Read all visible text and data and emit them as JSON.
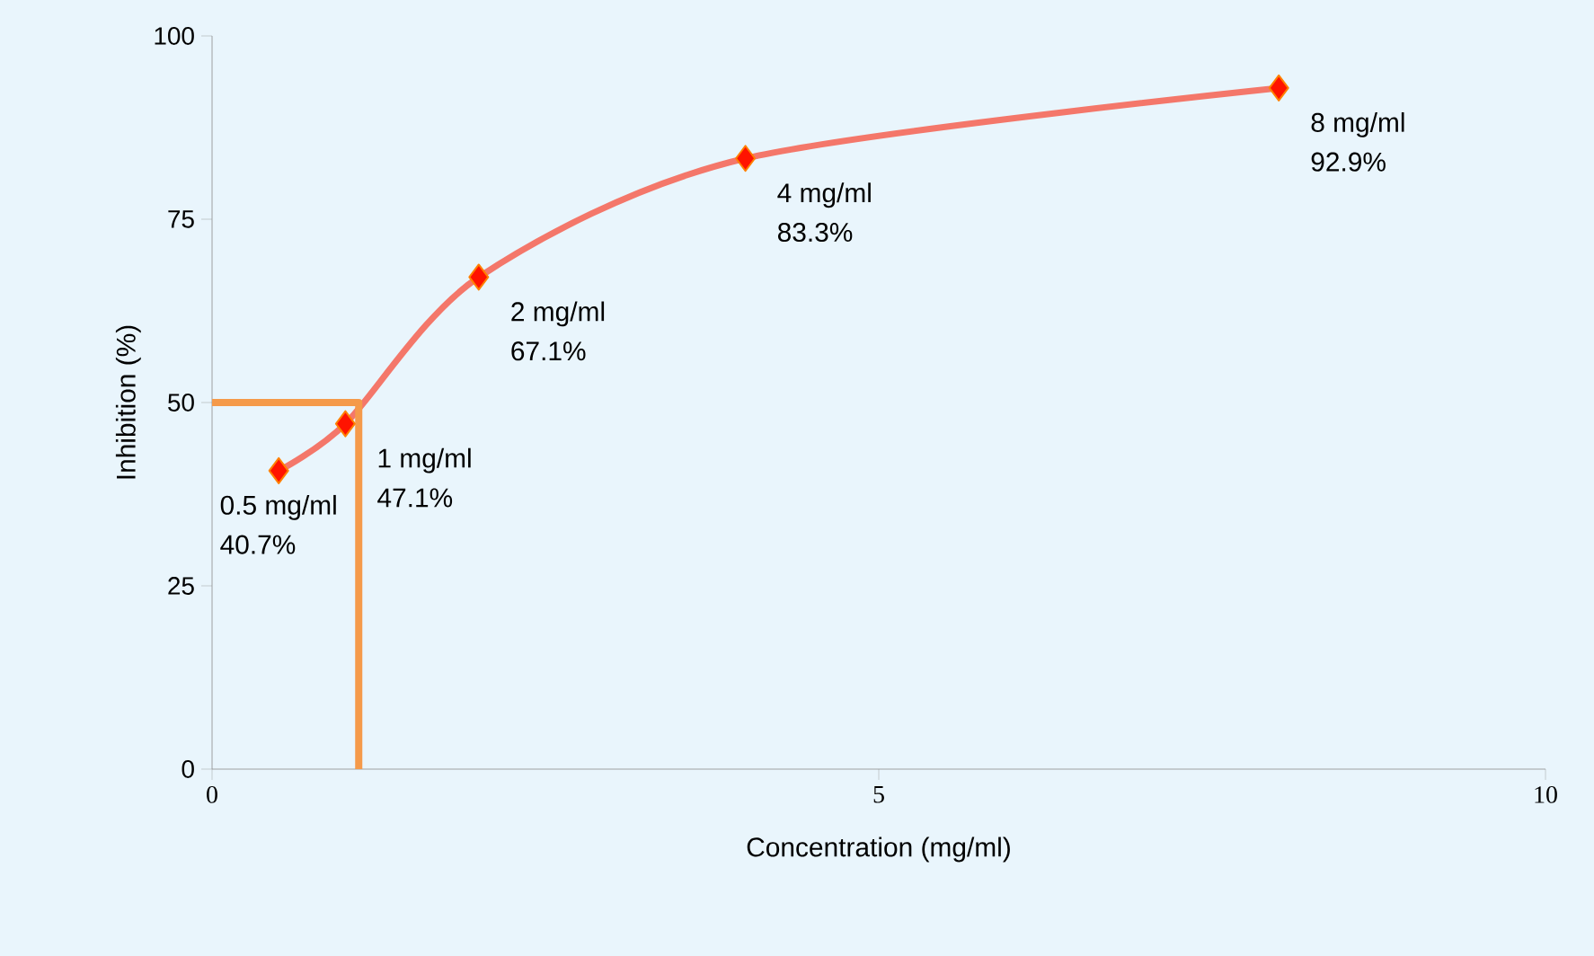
{
  "chart_data": {
    "type": "line",
    "xlabel": "Concentration (mg/ml)",
    "ylabel": "Inhibition (%)",
    "xlim": [
      0,
      10
    ],
    "xticks": [
      0,
      5,
      10
    ],
    "ylim": [
      0,
      100
    ],
    "yticks": [
      0,
      25,
      50,
      75,
      100
    ],
    "grid": false,
    "series": [
      {
        "color": "#f4776a",
        "marker": "diamond",
        "x": [
          0.5,
          1,
          2,
          4,
          8
        ],
        "values": [
          40.7,
          47.1,
          67.1,
          83.3,
          92.9
        ],
        "value_labels": [
          "40.7%",
          "47.1%",
          "67.1%",
          "83.3%",
          "92.9%"
        ]
      },
      {
        "type": "step",
        "color": "#f59a4a",
        "marker": "none",
        "x": [
          0,
          1.1
        ],
        "values": [
          50,
          0
        ]
      }
    ],
    "annotations": [
      {
        "text": "0.5 mg/ml",
        "x": 0.5,
        "y": 40.7
      },
      {
        "text": "1 mg/ml",
        "x": 1,
        "y": 47.1
      },
      {
        "text": "2 mg/ml",
        "x": 2,
        "y": 67.1
      },
      {
        "text": "4 mg/ml",
        "x": 4,
        "y": 83.3
      },
      {
        "text": "8 mg/ml",
        "x": 8,
        "y": 92.9
      }
    ]
  }
}
